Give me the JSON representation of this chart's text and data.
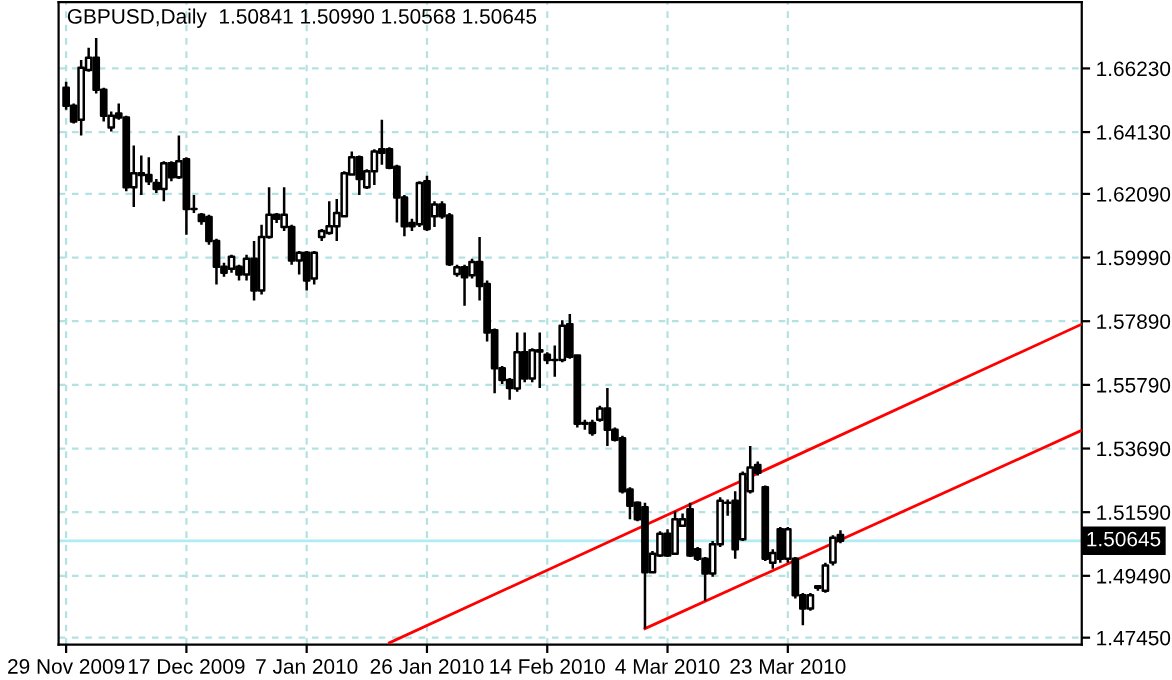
{
  "chart_data": {
    "type": "candlestick",
    "title": "GBPUSD,Daily  1.50841 1.50990 1.50568 1.50645",
    "categories": [
      "29 Nov 2009",
      null,
      null,
      null,
      null,
      null,
      null,
      null,
      null,
      null,
      null,
      null,
      null,
      null,
      null,
      null,
      "17 Dec 2009",
      null,
      null,
      null,
      null,
      null,
      null,
      null,
      null,
      null,
      null,
      null,
      null,
      null,
      null,
      null,
      "7 Jan 2010",
      null,
      null,
      null,
      null,
      null,
      null,
      null,
      null,
      null,
      null,
      null,
      null,
      null,
      null,
      null,
      "26 Jan 2010",
      null,
      null,
      null,
      null,
      null,
      null,
      null,
      null,
      null,
      null,
      null,
      null,
      null,
      null,
      null,
      "14 Feb 2010",
      null,
      null,
      null,
      null,
      null,
      null,
      null,
      null,
      null,
      null,
      null,
      null,
      null,
      null,
      null,
      "4 Mar 2010",
      null,
      null,
      null,
      null,
      null,
      null,
      null,
      null,
      null,
      null,
      null,
      null,
      null,
      null,
      null,
      "23 Mar 2010",
      null,
      null,
      null,
      null,
      null,
      null,
      null,
      null,
      null,
      null,
      null,
      null,
      null,
      null,
      null,
      null,
      null,
      null,
      null,
      null,
      null,
      null,
      null,
      null,
      null,
      null,
      null,
      null,
      null,
      null,
      null,
      null,
      null,
      null,
      null,
      null,
      null,
      null,
      null
    ],
    "ohlc": [
      [
        1.6559,
        1.6579,
        1.6487,
        1.65
      ],
      [
        1.65,
        1.6507,
        1.6441,
        1.6448
      ],
      [
        1.6454,
        1.6651,
        1.6402,
        1.6625
      ],
      [
        1.6618,
        1.6691,
        1.6612,
        1.6658
      ],
      [
        1.6658,
        1.6723,
        1.654,
        1.6553
      ],
      [
        1.6553,
        1.6559,
        1.6448,
        1.6467
      ],
      [
        1.6428,
        1.6481,
        1.6415,
        1.6467
      ],
      [
        1.6474,
        1.6507,
        1.6454,
        1.6461
      ],
      [
        1.6461,
        1.6467,
        1.6218,
        1.6231
      ],
      [
        1.6231,
        1.6369,
        1.6166,
        1.6277
      ],
      [
        1.6277,
        1.6336,
        1.6205,
        1.6271
      ],
      [
        1.6271,
        1.633,
        1.6238,
        1.6251
      ],
      [
        1.6245,
        1.6258,
        1.6212,
        1.6225
      ],
      [
        1.6225,
        1.6317,
        1.6185,
        1.631
      ],
      [
        1.631,
        1.6317,
        1.6251,
        1.6264
      ],
      [
        1.6264,
        1.6402,
        1.6258,
        1.6317
      ],
      [
        1.6323,
        1.633,
        1.6074,
        1.6159
      ],
      [
        1.6159,
        1.6205,
        1.6146,
        1.6159
      ],
      [
        1.614,
        1.6146,
        1.6107,
        1.612
      ],
      [
        1.6133,
        1.614,
        1.6041,
        1.6054
      ],
      [
        1.6054,
        1.6061,
        1.591,
        1.5969
      ],
      [
        1.5969,
        1.5982,
        1.5936,
        1.5949
      ],
      [
        1.5962,
        1.6008,
        1.5949,
        1.6002
      ],
      [
        1.5969,
        1.5975,
        1.5923,
        1.5943
      ],
      [
        1.5943,
        1.6008,
        1.5923,
        1.5995
      ],
      [
        1.5995,
        1.6054,
        1.5857,
        1.589
      ],
      [
        1.589,
        1.6107,
        1.5877,
        1.6067
      ],
      [
        1.6067,
        1.6231,
        1.6061,
        1.614
      ],
      [
        1.614,
        1.6146,
        1.6113,
        1.6127
      ],
      [
        1.61,
        1.6231,
        1.6087,
        1.614
      ],
      [
        1.61,
        1.6107,
        1.5975,
        1.5989
      ],
      [
        1.5989,
        1.6021,
        1.5943,
        1.6015
      ],
      [
        1.6015,
        1.6021,
        1.589,
        1.5923
      ],
      [
        1.593,
        1.6021,
        1.591,
        1.6015
      ],
      [
        1.6067,
        1.6093,
        1.6054,
        1.6087
      ],
      [
        1.608,
        1.6185,
        1.6074,
        1.6102
      ],
      [
        1.6102,
        1.6192,
        1.6054,
        1.6146
      ],
      [
        1.6135,
        1.6284,
        1.6133,
        1.6277
      ],
      [
        1.6273,
        1.6349,
        1.6271,
        1.633
      ],
      [
        1.633,
        1.6336,
        1.6205,
        1.6258
      ],
      [
        1.6231,
        1.629,
        1.6225,
        1.6284
      ],
      [
        1.6284,
        1.6356,
        1.6238,
        1.6349
      ],
      [
        1.6356,
        1.6454,
        1.6305,
        1.6345
      ],
      [
        1.6356,
        1.6363,
        1.629,
        1.6295
      ],
      [
        1.6299,
        1.6305,
        1.6115,
        1.6197
      ],
      [
        1.6197,
        1.6205,
        1.6069,
        1.6102
      ],
      [
        1.6113,
        1.6127,
        1.6087,
        1.6102
      ],
      [
        1.6109,
        1.6251,
        1.61,
        1.6245
      ],
      [
        1.6251,
        1.6269,
        1.6087,
        1.6093
      ],
      [
        1.6135,
        1.6185,
        1.61,
        1.6174
      ],
      [
        1.6174,
        1.6185,
        1.6127,
        1.6135
      ],
      [
        1.6138,
        1.6146,
        1.5971,
        1.5977
      ],
      [
        1.5945,
        1.5975,
        1.5936,
        1.5967
      ],
      [
        1.5967,
        1.5975,
        1.584,
        1.5934
      ],
      [
        1.5941,
        1.5995,
        1.593,
        1.5984
      ],
      [
        1.5984,
        1.6067,
        1.5857,
        1.5905
      ],
      [
        1.5912,
        1.5923,
        1.5722,
        1.5752
      ],
      [
        1.5759,
        1.5765,
        1.5551,
        1.5634
      ],
      [
        1.5634,
        1.5641,
        1.5582,
        1.5595
      ],
      [
        1.5595,
        1.5602,
        1.553,
        1.5569
      ],
      [
        1.5567,
        1.5752,
        1.5556,
        1.5687
      ],
      [
        1.5687,
        1.5752,
        1.5588,
        1.56
      ],
      [
        1.56,
        1.57,
        1.5588,
        1.5693
      ],
      [
        1.5693,
        1.5752,
        1.5569,
        1.5689
      ],
      [
        1.5678,
        1.5687,
        1.5648,
        1.5661
      ],
      [
        1.5661,
        1.5709,
        1.5606,
        1.5661
      ],
      [
        1.5661,
        1.5792,
        1.5654,
        1.5774
      ],
      [
        1.5779,
        1.5813,
        1.5665,
        1.5672
      ],
      [
        1.5676,
        1.568,
        1.5438,
        1.5451
      ],
      [
        1.5451,
        1.5464,
        1.5431,
        1.5453
      ],
      [
        1.5453,
        1.5464,
        1.5411,
        1.542
      ],
      [
        1.5464,
        1.551,
        1.5457,
        1.5501
      ],
      [
        1.5501,
        1.5569,
        1.5377,
        1.5431
      ],
      [
        1.5431,
        1.5438,
        1.5392,
        1.5398
      ],
      [
        1.5403,
        1.5411,
        1.5221,
        1.5228
      ],
      [
        1.5234,
        1.5241,
        1.5136,
        1.518
      ],
      [
        1.519,
        1.5195,
        1.5129,
        1.5136
      ],
      [
        1.5175,
        1.519,
        1.4775,
        1.4961
      ],
      [
        1.4961,
        1.5031,
        1.4959,
        1.5022
      ],
      [
        1.5016,
        1.5096,
        1.5011,
        1.5088
      ],
      [
        1.5088,
        1.5103,
        1.5011,
        1.5016
      ],
      [
        1.5022,
        1.5162,
        1.5018,
        1.5136
      ],
      [
        1.5114,
        1.5155,
        1.511,
        1.5136
      ],
      [
        1.5169,
        1.519,
        1.5011,
        1.5016
      ],
      [
        1.5037,
        1.5044,
        1.4998,
        1.5005
      ],
      [
        1.5005,
        1.5011,
        1.4867,
        1.4957
      ],
      [
        1.4957,
        1.5064,
        1.4946,
        1.5053
      ],
      [
        1.5053,
        1.5208,
        1.5044,
        1.5197
      ],
      [
        1.519,
        1.5201,
        1.5147,
        1.519
      ],
      [
        1.5197,
        1.5228,
        1.5005,
        1.5037
      ],
      [
        1.507,
        1.5293,
        1.5064,
        1.5285
      ],
      [
        1.5228,
        1.5377,
        1.5221,
        1.5306
      ],
      [
        1.5315,
        1.5326,
        1.528,
        1.5289
      ],
      [
        1.5241,
        1.5247,
        1.4998,
        1.5005
      ],
      [
        1.4992,
        1.5037,
        1.4972,
        1.5024
      ],
      [
        1.5103,
        1.511,
        1.4992,
        1.5005
      ],
      [
        1.5005,
        1.511,
        1.4992,
        1.5103
      ],
      [
        1.5005,
        1.5011,
        1.4874,
        1.4885
      ],
      [
        1.4885,
        1.4892,
        1.4786,
        1.4841
      ],
      [
        1.4841,
        1.4892,
        1.4834,
        1.4885
      ],
      [
        1.4915,
        1.4919,
        1.49,
        1.491
      ],
      [
        1.49,
        1.4992,
        1.4893,
        1.4983
      ],
      [
        1.4993,
        1.5083,
        1.4983,
        1.5075
      ],
      [
        1.50841,
        1.5099,
        1.50568,
        1.50645
      ],
      null,
      null,
      null,
      null,
      null,
      null,
      null,
      null,
      null,
      null,
      null,
      null,
      null,
      null,
      null,
      null,
      null,
      null,
      null,
      null,
      null,
      null,
      null,
      null,
      null,
      null,
      null,
      null,
      null,
      null,
      null,
      null
    ],
    "color": "#000000",
    "series": [
      {
        "type": "line",
        "values": [
          null,
          null,
          null,
          null,
          null,
          null,
          null,
          null,
          null,
          null,
          null,
          null,
          null,
          null,
          null,
          null,
          null,
          null,
          null,
          null,
          null,
          null,
          null,
          null,
          null,
          null,
          null,
          null,
          null,
          null,
          null,
          null,
          null,
          null,
          null,
          null,
          null,
          null,
          null,
          null,
          null,
          null,
          null,
          1.4728,
          null,
          null,
          null,
          null,
          null,
          null,
          null,
          null,
          null,
          null,
          null,
          null,
          null,
          null,
          null,
          null,
          null,
          null,
          null,
          null,
          null,
          null,
          null,
          null,
          null,
          null,
          null,
          null,
          null,
          null,
          null,
          null,
          null,
          null,
          null,
          null,
          null,
          null,
          null,
          null,
          null,
          null,
          null,
          null,
          null,
          null,
          null,
          null,
          null,
          null,
          null,
          null,
          null,
          null,
          null,
          null,
          null,
          null,
          null,
          null,
          null,
          null,
          null,
          null,
          null,
          null,
          null,
          null,
          null,
          null,
          null,
          null,
          null,
          null,
          null,
          null,
          null,
          null,
          null,
          null,
          null,
          null,
          null,
          null,
          null,
          null,
          null,
          null,
          null,
          null,
          null,
          1.5778
        ],
        "color": "#ff0000"
      },
      {
        "type": "line",
        "values": [
          null,
          null,
          null,
          null,
          null,
          null,
          null,
          null,
          null,
          null,
          null,
          null,
          null,
          null,
          null,
          null,
          null,
          null,
          null,
          null,
          null,
          null,
          null,
          null,
          null,
          null,
          null,
          null,
          null,
          null,
          null,
          null,
          null,
          null,
          null,
          null,
          null,
          null,
          null,
          null,
          null,
          null,
          null,
          null,
          null,
          null,
          null,
          null,
          null,
          null,
          null,
          null,
          null,
          null,
          null,
          null,
          null,
          null,
          null,
          null,
          null,
          null,
          null,
          null,
          null,
          null,
          null,
          null,
          null,
          null,
          null,
          null,
          null,
          null,
          null,
          null,
          null,
          1.4775,
          null,
          null,
          null,
          null,
          null,
          null,
          null,
          null,
          null,
          null,
          null,
          null,
          null,
          null,
          null,
          null,
          null,
          null,
          null,
          null,
          null,
          null,
          null,
          null,
          null,
          null,
          null,
          null,
          null,
          null,
          null,
          null,
          null,
          null,
          null,
          null,
          null,
          null,
          null,
          null,
          null,
          null,
          null,
          null,
          null,
          null,
          null,
          null,
          null,
          null,
          null,
          null,
          null,
          null,
          null,
          null,
          null,
          1.5428
        ],
        "color": "#ff0000"
      }
    ],
    "ref_lines": [
      {
        "axis": "y",
        "value": 1.50645,
        "label": "1.50645",
        "color": "#b0ecf4"
      }
    ],
    "ylim": [
      1.4722,
      1.6842
    ],
    "yticks": [
      {
        "value": 1.6623,
        "label": "1.66230"
      },
      {
        "value": 1.6413,
        "label": "1.64130"
      },
      {
        "value": 1.6209,
        "label": "1.62090"
      },
      {
        "value": 1.5999,
        "label": "1.59990"
      },
      {
        "value": 1.5789,
        "label": "1.57890"
      },
      {
        "value": 1.5579,
        "label": "1.55790"
      },
      {
        "value": 1.5369,
        "label": "1.53690"
      },
      {
        "value": 1.5159,
        "label": "1.51590"
      },
      {
        "value": 1.4949,
        "label": "1.49490"
      },
      {
        "value": 1.4745,
        "label": "1.47450"
      }
    ],
    "grid": true
  }
}
